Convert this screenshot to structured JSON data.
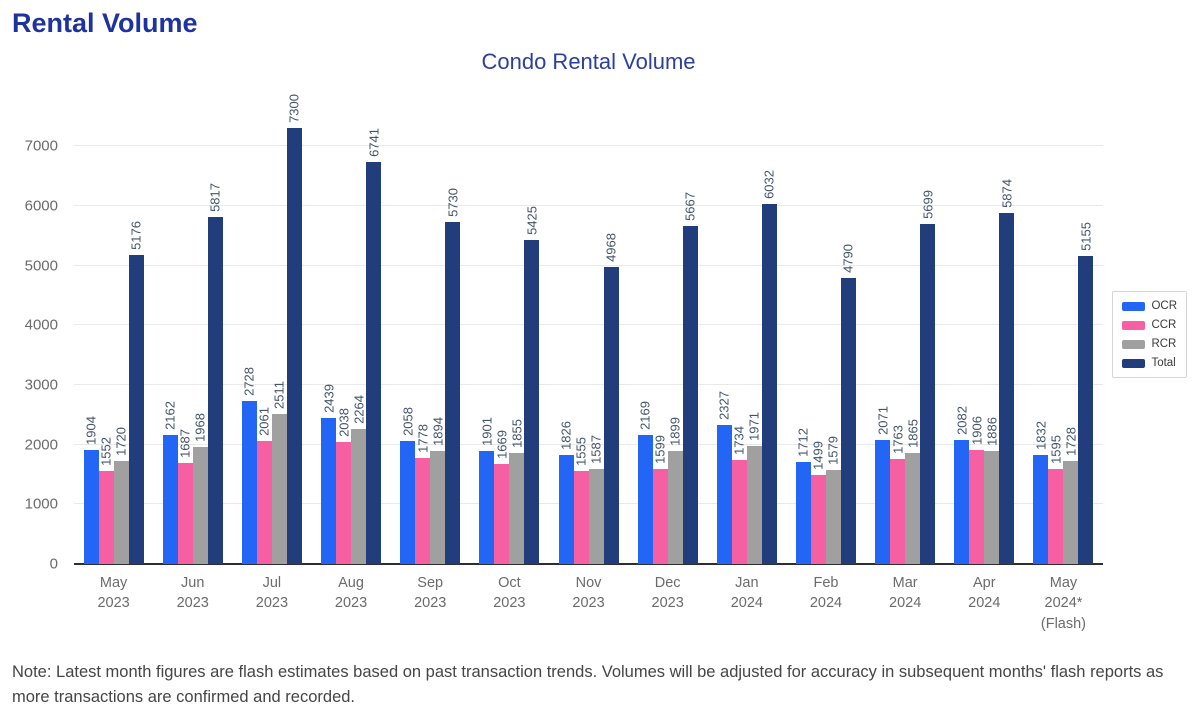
{
  "page": {
    "title": "Rental Volume"
  },
  "chart_data": {
    "type": "bar",
    "title": "Condo Rental Volume",
    "categories": [
      [
        "May",
        "2023"
      ],
      [
        "Jun",
        "2023"
      ],
      [
        "Jul",
        "2023"
      ],
      [
        "Aug",
        "2023"
      ],
      [
        "Sep",
        "2023"
      ],
      [
        "Oct",
        "2023"
      ],
      [
        "Nov",
        "2023"
      ],
      [
        "Dec",
        "2023"
      ],
      [
        "Jan",
        "2024"
      ],
      [
        "Feb",
        "2024"
      ],
      [
        "Mar",
        "2024"
      ],
      [
        "Apr",
        "2024"
      ],
      [
        "May",
        "2024*",
        "(Flash)"
      ]
    ],
    "series": [
      {
        "name": "OCR",
        "color": "#2365f4",
        "values": [
          1904,
          2162,
          2728,
          2439,
          2058,
          1901,
          1826,
          2169,
          2327,
          1712,
          2071,
          2082,
          1832
        ]
      },
      {
        "name": "CCR",
        "color": "#f660a2",
        "values": [
          1552,
          1687,
          2061,
          2038,
          1778,
          1669,
          1555,
          1599,
          1734,
          1499,
          1763,
          1906,
          1595
        ]
      },
      {
        "name": "RCR",
        "color": "#a0a0a0",
        "values": [
          1720,
          1968,
          2511,
          2264,
          1894,
          1855,
          1587,
          1899,
          1971,
          1579,
          1865,
          1886,
          1728
        ]
      },
      {
        "name": "Total",
        "color": "#223d7c",
        "values": [
          5176,
          5817,
          7300,
          6741,
          5730,
          5425,
          4968,
          5667,
          6032,
          4790,
          5699,
          5874,
          5155
        ]
      }
    ],
    "yticks": [
      0,
      1000,
      2000,
      3000,
      4000,
      5000,
      6000,
      7000
    ],
    "ylim": [
      0,
      7500
    ],
    "grid": true,
    "legend_position": "right",
    "show_values": true,
    "colors": {
      "title": "#1e339e",
      "data_label": "#44546a",
      "axis_text": "#6b6b6b"
    }
  },
  "note": {
    "text": "Note: Latest month figures are flash estimates based on past transaction trends. Volumes will be adjusted for accuracy in subsequent months' flash reports as more transactions are confirmed and recorded."
  }
}
